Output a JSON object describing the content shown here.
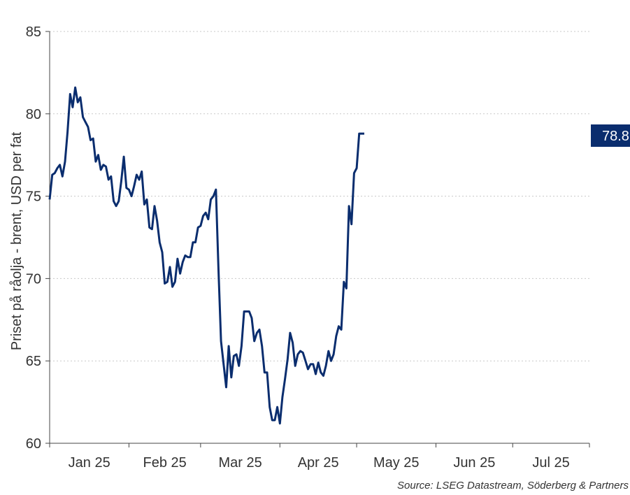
{
  "chart_data": {
    "type": "line",
    "title": "",
    "xlabel": "",
    "ylabel": "Priset på råolja - brent, USD per fat",
    "ylim": [
      60,
      85
    ],
    "yticks": [
      60,
      65,
      70,
      75,
      80,
      85
    ],
    "grid": true,
    "xlim": [
      "2025-01-01",
      "2025-07-31"
    ],
    "x_tick_labels": [
      "Jan 25",
      "Feb 25",
      "Mar 25",
      "Apr 25",
      "May 25",
      "Jun 25",
      "Jul 25"
    ],
    "month_starts": [
      "2025-01-01",
      "2025-02-01",
      "2025-03-01",
      "2025-04-01",
      "2025-05-01",
      "2025-06-01",
      "2025-07-01",
      "2025-08-01"
    ],
    "series": [
      {
        "color": "#0a2d6e",
        "points": [
          [
            "2025-01-01",
            74.8
          ],
          [
            "2025-01-02",
            76.3
          ],
          [
            "2025-01-03",
            76.4
          ],
          [
            "2025-01-04",
            76.7
          ],
          [
            "2025-01-05",
            76.9
          ],
          [
            "2025-01-06",
            76.2
          ],
          [
            "2025-01-07",
            77.1
          ],
          [
            "2025-01-08",
            78.9
          ],
          [
            "2025-01-09",
            81.2
          ],
          [
            "2025-01-10",
            80.4
          ],
          [
            "2025-01-11",
            81.6
          ],
          [
            "2025-01-12",
            80.7
          ],
          [
            "2025-01-13",
            81.0
          ],
          [
            "2025-01-14",
            79.8
          ],
          [
            "2025-01-15",
            79.5
          ],
          [
            "2025-01-16",
            79.2
          ],
          [
            "2025-01-17",
            78.4
          ],
          [
            "2025-01-18",
            78.5
          ],
          [
            "2025-01-19",
            77.1
          ],
          [
            "2025-01-20",
            77.5
          ],
          [
            "2025-01-21",
            76.6
          ],
          [
            "2025-01-22",
            76.9
          ],
          [
            "2025-01-23",
            76.8
          ],
          [
            "2025-01-24",
            76.0
          ],
          [
            "2025-01-25",
            76.2
          ],
          [
            "2025-01-26",
            74.7
          ],
          [
            "2025-01-27",
            74.4
          ],
          [
            "2025-01-28",
            74.7
          ],
          [
            "2025-01-29",
            75.9
          ],
          [
            "2025-01-30",
            77.4
          ],
          [
            "2025-01-31",
            75.5
          ],
          [
            "2025-02-01",
            75.4
          ],
          [
            "2025-02-02",
            75.0
          ],
          [
            "2025-02-03",
            75.6
          ],
          [
            "2025-02-04",
            76.3
          ],
          [
            "2025-02-05",
            76.0
          ],
          [
            "2025-02-06",
            76.5
          ],
          [
            "2025-02-07",
            74.5
          ],
          [
            "2025-02-08",
            74.8
          ],
          [
            "2025-02-09",
            73.1
          ],
          [
            "2025-02-10",
            73.0
          ],
          [
            "2025-02-11",
            74.4
          ],
          [
            "2025-02-12",
            73.5
          ],
          [
            "2025-02-13",
            72.2
          ],
          [
            "2025-02-14",
            71.6
          ],
          [
            "2025-02-15",
            69.7
          ],
          [
            "2025-02-16",
            69.8
          ],
          [
            "2025-02-17",
            70.7
          ],
          [
            "2025-02-18",
            69.5
          ],
          [
            "2025-02-19",
            69.8
          ],
          [
            "2025-02-20",
            71.2
          ],
          [
            "2025-02-21",
            70.3
          ],
          [
            "2025-02-22",
            71.0
          ],
          [
            "2025-02-23",
            71.4
          ],
          [
            "2025-02-24",
            71.3
          ],
          [
            "2025-02-25",
            71.3
          ],
          [
            "2025-02-26",
            72.2
          ],
          [
            "2025-02-27",
            72.2
          ],
          [
            "2025-02-28",
            73.1
          ],
          [
            "2025-03-01",
            73.2
          ],
          [
            "2025-03-02",
            73.8
          ],
          [
            "2025-03-03",
            74.0
          ],
          [
            "2025-03-04",
            73.6
          ],
          [
            "2025-03-05",
            74.8
          ],
          [
            "2025-03-06",
            75.0
          ],
          [
            "2025-03-07",
            75.4
          ],
          [
            "2025-03-08",
            70.5
          ],
          [
            "2025-03-09",
            66.2
          ],
          [
            "2025-03-10",
            64.8
          ],
          [
            "2025-03-11",
            63.4
          ],
          [
            "2025-03-12",
            65.9
          ],
          [
            "2025-03-13",
            64.0
          ],
          [
            "2025-03-14",
            65.3
          ],
          [
            "2025-03-15",
            65.4
          ],
          [
            "2025-03-16",
            64.7
          ],
          [
            "2025-03-17",
            65.9
          ],
          [
            "2025-03-18",
            68.0
          ],
          [
            "2025-03-19",
            68.0
          ],
          [
            "2025-03-20",
            68.0
          ],
          [
            "2025-03-21",
            67.6
          ],
          [
            "2025-03-22",
            66.2
          ],
          [
            "2025-03-23",
            66.7
          ],
          [
            "2025-03-24",
            66.9
          ],
          [
            "2025-03-25",
            65.9
          ],
          [
            "2025-03-26",
            64.3
          ],
          [
            "2025-03-27",
            64.3
          ],
          [
            "2025-03-28",
            62.2
          ],
          [
            "2025-03-29",
            61.4
          ],
          [
            "2025-03-30",
            61.4
          ],
          [
            "2025-03-31",
            62.2
          ],
          [
            "2025-04-01",
            61.2
          ],
          [
            "2025-04-02",
            62.8
          ],
          [
            "2025-04-03",
            63.9
          ],
          [
            "2025-04-04",
            65.1
          ],
          [
            "2025-04-05",
            66.7
          ],
          [
            "2025-04-06",
            66.1
          ],
          [
            "2025-04-07",
            64.7
          ],
          [
            "2025-04-08",
            65.4
          ],
          [
            "2025-04-09",
            65.6
          ],
          [
            "2025-04-10",
            65.5
          ],
          [
            "2025-04-11",
            65.0
          ],
          [
            "2025-04-12",
            64.5
          ],
          [
            "2025-04-13",
            64.8
          ],
          [
            "2025-04-14",
            64.8
          ],
          [
            "2025-04-15",
            64.2
          ],
          [
            "2025-04-16",
            64.9
          ],
          [
            "2025-04-17",
            64.3
          ],
          [
            "2025-04-18",
            64.1
          ],
          [
            "2025-04-19",
            64.7
          ],
          [
            "2025-04-20",
            65.6
          ],
          [
            "2025-04-21",
            65.0
          ],
          [
            "2025-04-22",
            65.4
          ],
          [
            "2025-04-23",
            66.5
          ],
          [
            "2025-04-24",
            67.1
          ],
          [
            "2025-04-25",
            66.9
          ],
          [
            "2025-04-26",
            69.8
          ],
          [
            "2025-04-27",
            69.4
          ],
          [
            "2025-04-28",
            74.4
          ],
          [
            "2025-04-29",
            73.3
          ],
          [
            "2025-04-30",
            76.4
          ],
          [
            "2025-05-01",
            76.7
          ],
          [
            "2025-05-02",
            78.8
          ],
          [
            "2025-05-03",
            78.8
          ],
          [
            "2025-05-04",
            78.8
          ]
        ]
      }
    ],
    "last_value_label": "78.8"
  },
  "source_text": "Source: LSEG Datastream, Söderberg & Partners"
}
